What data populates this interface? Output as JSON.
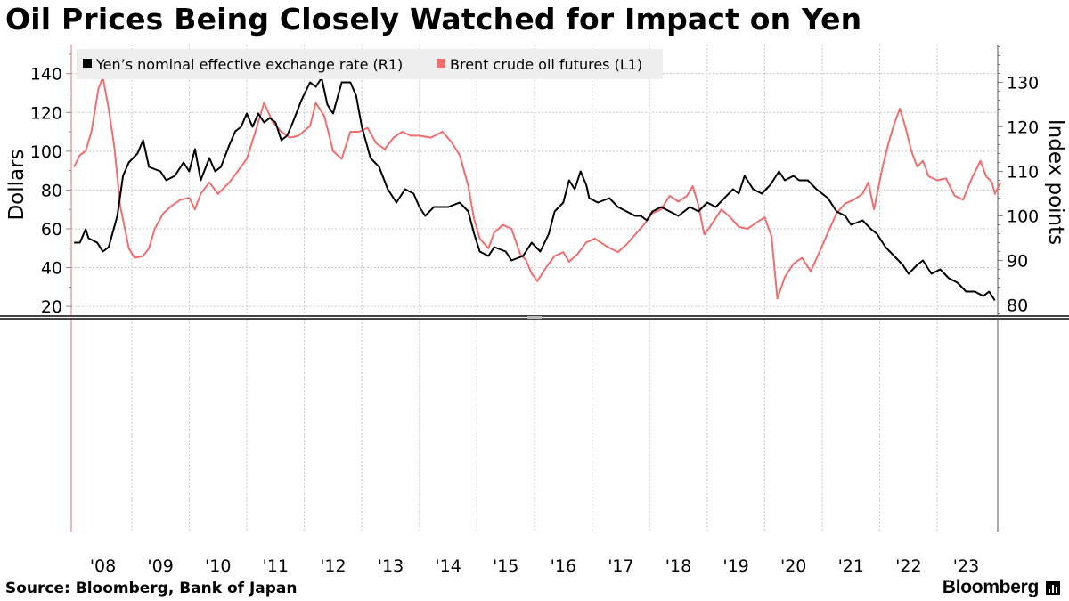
{
  "title": "Oil Prices Being Closely Watched for Impact on Yen",
  "source": "Source: Bloomberg, Bank of Japan",
  "brand": "Bloomberg",
  "colors": {
    "yen": "#000000",
    "brent": "#f26d6d",
    "grid": "#c8c8c8",
    "legend_bg": "#eeeeee"
  },
  "chart_data": {
    "type": "line",
    "xlabel": "",
    "left_axis": {
      "label": "Dollars",
      "ticks": [
        20,
        40,
        60,
        80,
        100,
        120,
        140
      ],
      "range": [
        15,
        155
      ]
    },
    "right_axis": {
      "label": "Index points",
      "ticks": [
        80,
        90,
        100,
        110,
        120,
        130
      ],
      "range": [
        77.5,
        138.5
      ]
    },
    "x_range": [
      2007.95,
      2024.05
    ],
    "x_ticks": [
      {
        "label": "'08",
        "x": 2008.5
      },
      {
        "label": "'09",
        "x": 2009.5
      },
      {
        "label": "'10",
        "x": 2010.5
      },
      {
        "label": "'11",
        "x": 2011.5
      },
      {
        "label": "'12",
        "x": 2012.5
      },
      {
        "label": "'13",
        "x": 2013.5
      },
      {
        "label": "'14",
        "x": 2014.5
      },
      {
        "label": "'15",
        "x": 2015.5
      },
      {
        "label": "'16",
        "x": 2016.5
      },
      {
        "label": "'17",
        "x": 2017.5
      },
      {
        "label": "'18",
        "x": 2018.5
      },
      {
        "label": "'19",
        "x": 2019.5
      },
      {
        "label": "'20",
        "x": 2020.5
      },
      {
        "label": "'21",
        "x": 2021.5
      },
      {
        "label": "'22",
        "x": 2022.5
      },
      {
        "label": "'23",
        "x": 2023.5
      }
    ],
    "grid": true,
    "legend_position": "top-left",
    "series": [
      {
        "name": "Yen’s nominal effective exchange rate (R1)",
        "axis": "right",
        "points": [
          [
            2008.0,
            94
          ],
          [
            2008.1,
            94
          ],
          [
            2008.2,
            97
          ],
          [
            2008.25,
            95
          ],
          [
            2008.4,
            94
          ],
          [
            2008.5,
            92
          ],
          [
            2008.6,
            93
          ],
          [
            2008.75,
            100
          ],
          [
            2008.85,
            109
          ],
          [
            2008.95,
            112
          ],
          [
            2009.1,
            114
          ],
          [
            2009.2,
            117
          ],
          [
            2009.3,
            111
          ],
          [
            2009.5,
            110
          ],
          [
            2009.6,
            108
          ],
          [
            2009.75,
            109
          ],
          [
            2009.9,
            112
          ],
          [
            2010.0,
            110
          ],
          [
            2010.1,
            115
          ],
          [
            2010.2,
            108
          ],
          [
            2010.35,
            113
          ],
          [
            2010.45,
            110
          ],
          [
            2010.55,
            111
          ],
          [
            2010.7,
            116
          ],
          [
            2010.8,
            119
          ],
          [
            2010.9,
            120
          ],
          [
            2011.0,
            123
          ],
          [
            2011.1,
            120
          ],
          [
            2011.2,
            123
          ],
          [
            2011.3,
            121
          ],
          [
            2011.4,
            122
          ],
          [
            2011.5,
            121
          ],
          [
            2011.6,
            117
          ],
          [
            2011.7,
            118
          ],
          [
            2011.8,
            121
          ],
          [
            2011.95,
            126
          ],
          [
            2012.1,
            130
          ],
          [
            2012.2,
            129
          ],
          [
            2012.3,
            131
          ],
          [
            2012.4,
            125
          ],
          [
            2012.5,
            123
          ],
          [
            2012.65,
            130
          ],
          [
            2012.8,
            130
          ],
          [
            2012.9,
            127
          ],
          [
            2013.0,
            120
          ],
          [
            2013.15,
            113
          ],
          [
            2013.3,
            111
          ],
          [
            2013.45,
            106
          ],
          [
            2013.6,
            103
          ],
          [
            2013.75,
            106
          ],
          [
            2013.9,
            105
          ],
          [
            2014.0,
            102
          ],
          [
            2014.1,
            100
          ],
          [
            2014.25,
            102
          ],
          [
            2014.5,
            102
          ],
          [
            2014.7,
            103
          ],
          [
            2014.85,
            101
          ],
          [
            2014.95,
            96
          ],
          [
            2015.05,
            92
          ],
          [
            2015.2,
            91
          ],
          [
            2015.3,
            93
          ],
          [
            2015.5,
            92
          ],
          [
            2015.6,
            90
          ],
          [
            2015.8,
            91
          ],
          [
            2015.95,
            94
          ],
          [
            2016.1,
            92
          ],
          [
            2016.25,
            96
          ],
          [
            2016.35,
            101
          ],
          [
            2016.5,
            103
          ],
          [
            2016.6,
            108
          ],
          [
            2016.7,
            106
          ],
          [
            2016.8,
            110
          ],
          [
            2016.9,
            107
          ],
          [
            2016.95,
            104
          ],
          [
            2017.1,
            103
          ],
          [
            2017.3,
            104
          ],
          [
            2017.45,
            102
          ],
          [
            2017.6,
            101
          ],
          [
            2017.75,
            100
          ],
          [
            2017.85,
            100
          ],
          [
            2017.95,
            99
          ],
          [
            2018.05,
            101
          ],
          [
            2018.2,
            102
          ],
          [
            2018.35,
            101
          ],
          [
            2018.5,
            100
          ],
          [
            2018.7,
            102
          ],
          [
            2018.85,
            101
          ],
          [
            2019.0,
            103
          ],
          [
            2019.15,
            102
          ],
          [
            2019.3,
            104
          ],
          [
            2019.45,
            106
          ],
          [
            2019.55,
            105
          ],
          [
            2019.65,
            109
          ],
          [
            2019.8,
            106
          ],
          [
            2019.95,
            105
          ],
          [
            2020.1,
            107
          ],
          [
            2020.25,
            110
          ],
          [
            2020.35,
            108
          ],
          [
            2020.5,
            109
          ],
          [
            2020.6,
            108
          ],
          [
            2020.75,
            108
          ],
          [
            2020.9,
            106
          ],
          [
            2021.1,
            104
          ],
          [
            2021.25,
            101
          ],
          [
            2021.4,
            100
          ],
          [
            2021.5,
            98
          ],
          [
            2021.7,
            99
          ],
          [
            2021.85,
            97
          ],
          [
            2021.95,
            96
          ],
          [
            2022.1,
            93
          ],
          [
            2022.25,
            91
          ],
          [
            2022.4,
            89
          ],
          [
            2022.5,
            87
          ],
          [
            2022.65,
            89
          ],
          [
            2022.75,
            90
          ],
          [
            2022.9,
            87
          ],
          [
            2023.05,
            88
          ],
          [
            2023.2,
            86
          ],
          [
            2023.35,
            85
          ],
          [
            2023.5,
            83
          ],
          [
            2023.65,
            83
          ],
          [
            2023.8,
            82
          ],
          [
            2023.9,
            83
          ],
          [
            2024.0,
            81
          ]
        ]
      },
      {
        "name": "Brent crude oil futures (L1)",
        "axis": "left",
        "points": [
          [
            2008.0,
            92
          ],
          [
            2008.1,
            98
          ],
          [
            2008.2,
            100
          ],
          [
            2008.3,
            110
          ],
          [
            2008.42,
            132
          ],
          [
            2008.5,
            138
          ],
          [
            2008.6,
            122
          ],
          [
            2008.7,
            102
          ],
          [
            2008.8,
            72
          ],
          [
            2008.95,
            50
          ],
          [
            2009.05,
            45
          ],
          [
            2009.2,
            46
          ],
          [
            2009.3,
            50
          ],
          [
            2009.4,
            60
          ],
          [
            2009.55,
            68
          ],
          [
            2009.7,
            72
          ],
          [
            2009.85,
            75
          ],
          [
            2010.0,
            76
          ],
          [
            2010.1,
            70
          ],
          [
            2010.2,
            78
          ],
          [
            2010.35,
            84
          ],
          [
            2010.5,
            78
          ],
          [
            2010.7,
            84
          ],
          [
            2010.9,
            92
          ],
          [
            2011.0,
            96
          ],
          [
            2011.15,
            110
          ],
          [
            2011.3,
            125
          ],
          [
            2011.45,
            115
          ],
          [
            2011.6,
            110
          ],
          [
            2011.75,
            107
          ],
          [
            2011.9,
            108
          ],
          [
            2012.1,
            113
          ],
          [
            2012.2,
            125
          ],
          [
            2012.35,
            118
          ],
          [
            2012.5,
            100
          ],
          [
            2012.65,
            96
          ],
          [
            2012.8,
            110
          ],
          [
            2012.95,
            110
          ],
          [
            2013.1,
            112
          ],
          [
            2013.25,
            104
          ],
          [
            2013.4,
            101
          ],
          [
            2013.55,
            107
          ],
          [
            2013.7,
            110
          ],
          [
            2013.85,
            108
          ],
          [
            2014.0,
            108
          ],
          [
            2014.2,
            107
          ],
          [
            2014.4,
            110
          ],
          [
            2014.55,
            105
          ],
          [
            2014.7,
            98
          ],
          [
            2014.85,
            82
          ],
          [
            2014.95,
            65
          ],
          [
            2015.05,
            55
          ],
          [
            2015.2,
            50
          ],
          [
            2015.3,
            58
          ],
          [
            2015.45,
            62
          ],
          [
            2015.6,
            60
          ],
          [
            2015.75,
            47
          ],
          [
            2015.85,
            44
          ],
          [
            2015.95,
            37
          ],
          [
            2016.05,
            33
          ],
          [
            2016.2,
            40
          ],
          [
            2016.35,
            46
          ],
          [
            2016.5,
            48
          ],
          [
            2016.6,
            43
          ],
          [
            2016.75,
            47
          ],
          [
            2016.9,
            53
          ],
          [
            2017.05,
            55
          ],
          [
            2017.25,
            51
          ],
          [
            2017.45,
            48
          ],
          [
            2017.6,
            52
          ],
          [
            2017.75,
            57
          ],
          [
            2017.9,
            62
          ],
          [
            2018.05,
            68
          ],
          [
            2018.2,
            70
          ],
          [
            2018.35,
            77
          ],
          [
            2018.5,
            74
          ],
          [
            2018.65,
            77
          ],
          [
            2018.75,
            82
          ],
          [
            2018.85,
            72
          ],
          [
            2018.95,
            57
          ],
          [
            2019.05,
            61
          ],
          [
            2019.25,
            70
          ],
          [
            2019.4,
            66
          ],
          [
            2019.55,
            61
          ],
          [
            2019.7,
            60
          ],
          [
            2019.85,
            63
          ],
          [
            2020.0,
            66
          ],
          [
            2020.12,
            56
          ],
          [
            2020.22,
            24
          ],
          [
            2020.35,
            35
          ],
          [
            2020.5,
            42
          ],
          [
            2020.65,
            45
          ],
          [
            2020.8,
            38
          ],
          [
            2020.95,
            48
          ],
          [
            2021.1,
            58
          ],
          [
            2021.25,
            68
          ],
          [
            2021.4,
            73
          ],
          [
            2021.55,
            75
          ],
          [
            2021.7,
            78
          ],
          [
            2021.8,
            84
          ],
          [
            2021.9,
            70
          ],
          [
            2022.05,
            92
          ],
          [
            2022.15,
            104
          ],
          [
            2022.25,
            114
          ],
          [
            2022.35,
            122
          ],
          [
            2022.45,
            112
          ],
          [
            2022.55,
            100
          ],
          [
            2022.65,
            92
          ],
          [
            2022.75,
            95
          ],
          [
            2022.85,
            87
          ],
          [
            2023.0,
            85
          ],
          [
            2023.15,
            86
          ],
          [
            2023.3,
            77
          ],
          [
            2023.45,
            75
          ],
          [
            2023.6,
            86
          ],
          [
            2023.75,
            95
          ],
          [
            2023.85,
            87
          ],
          [
            2023.95,
            84
          ],
          [
            2024.0,
            78
          ],
          [
            2024.1,
            84
          ]
        ]
      }
    ]
  }
}
